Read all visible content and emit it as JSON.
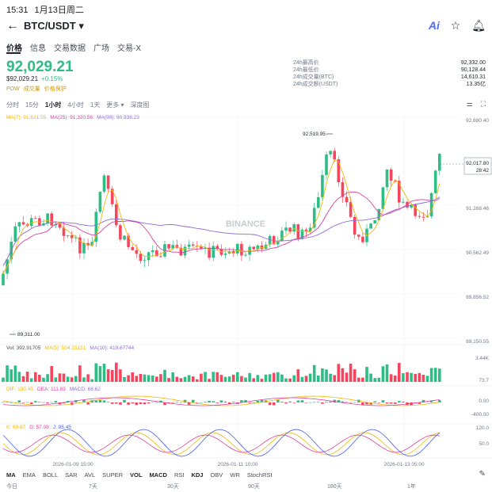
{
  "status": {
    "time": "15:31",
    "date": "1月13日周二"
  },
  "header": {
    "pair": "BTC/USDT",
    "caret": "▾",
    "ai": "Ai"
  },
  "tabs": [
    "价格",
    "信息",
    "交易数据",
    "广场",
    "交易-X"
  ],
  "price": {
    "last": "92,029.21",
    "sub_price": "$92,029.21",
    "change": "+0.15%",
    "badges": [
      "POW",
      "成交量",
      "价格保护"
    ]
  },
  "stats": [
    {
      "label": "24h最高价",
      "value": "92,332.00"
    },
    {
      "label": "24h最低价",
      "value": "90,128.44"
    },
    {
      "label": "24h成交量(BTC)",
      "value": "14,610.31"
    },
    {
      "label": "24h成交额(USDT)",
      "value": "13.35亿"
    }
  ],
  "timeframes": [
    "分时",
    "15分",
    "1小时",
    "4小时",
    "1天",
    "更多 ▾",
    "深度图"
  ],
  "chart_data": {
    "type": "candlestick",
    "ma_legend": {
      "ma7": "MA(7): 91,621.55",
      "ma25": "MA(25): 91,320.56",
      "ma99": "MA(99): 90,938.23"
    },
    "y_ticks": [
      "92,680.40",
      "91,268.46",
      "90,562.49",
      "89,856.52",
      "89,150.55"
    ],
    "ylim": [
      89150.55,
      92680.4
    ],
    "high_label": "92,519.95",
    "low_label": "89,311.00",
    "current_price": "92,017.80",
    "countdown": "28:42",
    "watermark": "BINANCE",
    "x_labels": [
      "2026-01-09 15:00",
      "2026-01-11 10:00",
      "2026-01-13 05:00"
    ],
    "candles": [],
    "vol_legend": {
      "vol": "Vol: 392.91705",
      "ma5": "MA(5): 504.15151",
      "ma10": "MA(10): 419.67744"
    },
    "vol_ticks": [
      "3.44K",
      "73.7"
    ],
    "macd_legend": {
      "dif": "DIF: 180.45",
      "dea": "DEA: 111.83",
      "macd": "MACD: 68.62"
    },
    "macd_ticks": [
      "0.00",
      "-400.00"
    ],
    "kdj_legend": {
      "k": "K: 69.87",
      "d": "D: 57.08",
      "j": "J: 95.45"
    },
    "kdj_ticks": [
      "120.0",
      "50.0"
    ]
  },
  "colors": {
    "up": "#2ebd85",
    "down": "#f6465d",
    "ma7": "#f0b90b",
    "ma25": "#e040a0",
    "ma99": "#8c6cd8"
  },
  "bottom_tools": [
    "MA",
    "EMA",
    "BOLL",
    "SAR",
    "AVL",
    "SUPER",
    "VOL",
    "MACD",
    "RSI",
    "KDJ",
    "OBV",
    "WR",
    "StochRSI"
  ],
  "ranges": [
    "今日",
    "7天",
    "30天",
    "90天",
    "180天",
    "1年"
  ]
}
